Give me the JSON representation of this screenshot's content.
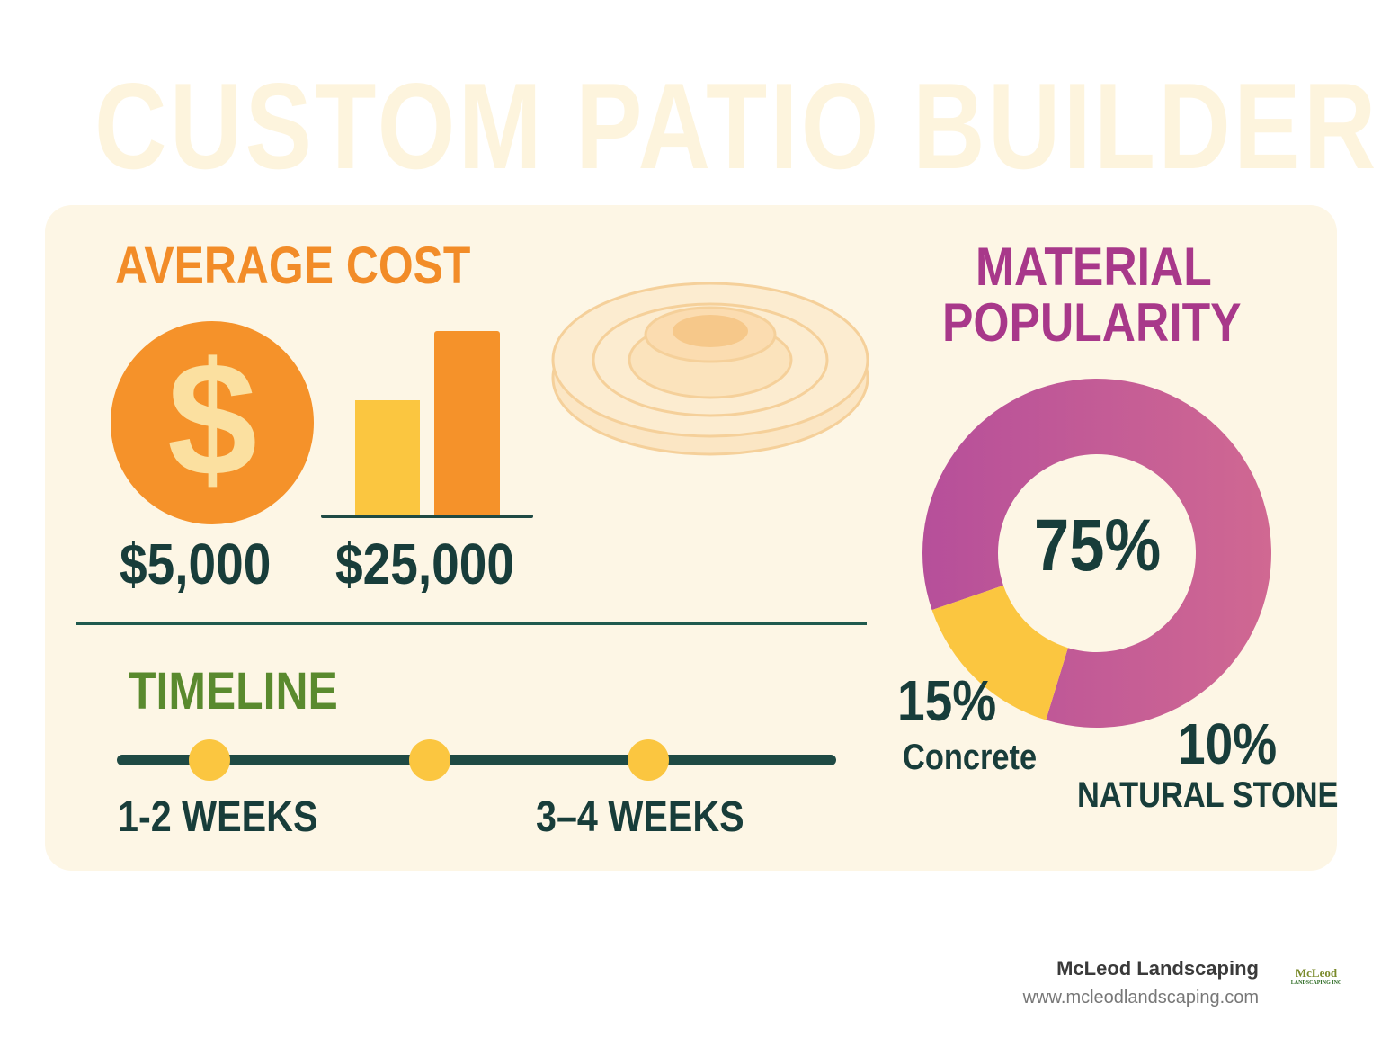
{
  "title": "CUSTOM PATIO BUILDER",
  "cost": {
    "heading": "AVERAGE COST",
    "icon": "dollar-icon",
    "low": "$5,000",
    "high": "$25,000",
    "colors": {
      "orange": "#f5922a",
      "yellow": "#fbc640"
    }
  },
  "timeline": {
    "heading": "TIMELINE",
    "start_label": "1-2 WEEKS",
    "end_label": "3–4 WEEKS",
    "milestones": 3
  },
  "materials": {
    "heading_line1": "MATERIAL",
    "heading_line2": "POPULARITY"
  },
  "chart_data": {
    "type": "pie",
    "title": "MATERIAL POPULARITY",
    "donut": true,
    "slices": [
      {
        "label": "",
        "value": 75,
        "value_label": "75%",
        "color": "#c25a9a"
      },
      {
        "label": "Concrete",
        "value": 15,
        "value_label": "15%",
        "color": "#fbc640"
      },
      {
        "label": "Natural stone",
        "value": 10,
        "value_label": "10%",
        "color": "#c25a9a"
      }
    ]
  },
  "footer": {
    "company": "McLeod Landscaping",
    "url": "www.mcleodlandscaping.com",
    "logo_text": "McLeod LANDSCAPING INC"
  }
}
